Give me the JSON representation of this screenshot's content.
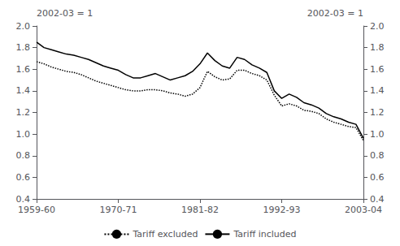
{
  "chart_data": {
    "type": "line",
    "ylabel": "2002-03 = 1",
    "y2label": "2002-03 = 1",
    "x": [
      1959,
      1960,
      1961,
      1962,
      1963,
      1964,
      1965,
      1966,
      1967,
      1968,
      1969,
      1970,
      1971,
      1972,
      1973,
      1974,
      1975,
      1976,
      1977,
      1978,
      1979,
      1980,
      1981,
      1982,
      1983,
      1984,
      1985,
      1986,
      1987,
      1988,
      1989,
      1990,
      1991,
      1992,
      1993,
      1994,
      1995,
      1996,
      1997,
      1998,
      1999,
      2000,
      2001,
      2002,
      2003
    ],
    "series": [
      {
        "name": "Tariff excluded",
        "color": "#000000",
        "line_style": "dotted",
        "values": [
          1.67,
          1.65,
          1.62,
          1.6,
          1.58,
          1.57,
          1.55,
          1.52,
          1.49,
          1.47,
          1.45,
          1.43,
          1.41,
          1.4,
          1.4,
          1.41,
          1.41,
          1.4,
          1.38,
          1.37,
          1.35,
          1.37,
          1.43,
          1.58,
          1.53,
          1.5,
          1.51,
          1.59,
          1.59,
          1.56,
          1.54,
          1.5,
          1.36,
          1.26,
          1.28,
          1.26,
          1.22,
          1.21,
          1.19,
          1.14,
          1.11,
          1.09,
          1.07,
          1.06,
          0.94
        ]
      },
      {
        "name": "Tariff included",
        "color": "#000000",
        "line_style": "solid",
        "values": [
          1.85,
          1.8,
          1.78,
          1.76,
          1.74,
          1.73,
          1.71,
          1.69,
          1.66,
          1.63,
          1.61,
          1.59,
          1.55,
          1.52,
          1.52,
          1.54,
          1.56,
          1.53,
          1.5,
          1.52,
          1.54,
          1.58,
          1.65,
          1.75,
          1.68,
          1.63,
          1.61,
          1.71,
          1.69,
          1.64,
          1.61,
          1.57,
          1.4,
          1.33,
          1.37,
          1.34,
          1.29,
          1.27,
          1.24,
          1.19,
          1.16,
          1.14,
          1.11,
          1.09,
          0.96
        ]
      }
    ],
    "xlim": [
      1959,
      2003
    ],
    "xticks": [
      {
        "value": 1959,
        "label": "1959-60"
      },
      {
        "value": 1970,
        "label": "1970-71"
      },
      {
        "value": 1981,
        "label": "1981-82"
      },
      {
        "value": 1992,
        "label": "1992-93"
      },
      {
        "value": 2003,
        "label": "2003-04"
      }
    ],
    "ylim": [
      0.4,
      2.0
    ],
    "yticks": [
      0.4,
      0.6,
      0.8,
      {
        "value": 1.0,
        "label": "1.0"
      },
      1.2,
      1.4,
      1.6,
      1.8,
      {
        "value": 2.0,
        "label": "2.0"
      }
    ],
    "y2lim": [
      0.4,
      2.0
    ],
    "y2ticks": [
      0.4,
      0.6,
      0.8,
      {
        "value": 1.0,
        "label": "1.0"
      },
      1.2,
      1.4,
      1.6,
      1.8,
      {
        "value": 2.0,
        "label": "2.0"
      }
    ],
    "grid": false,
    "legend": "bottom"
  }
}
